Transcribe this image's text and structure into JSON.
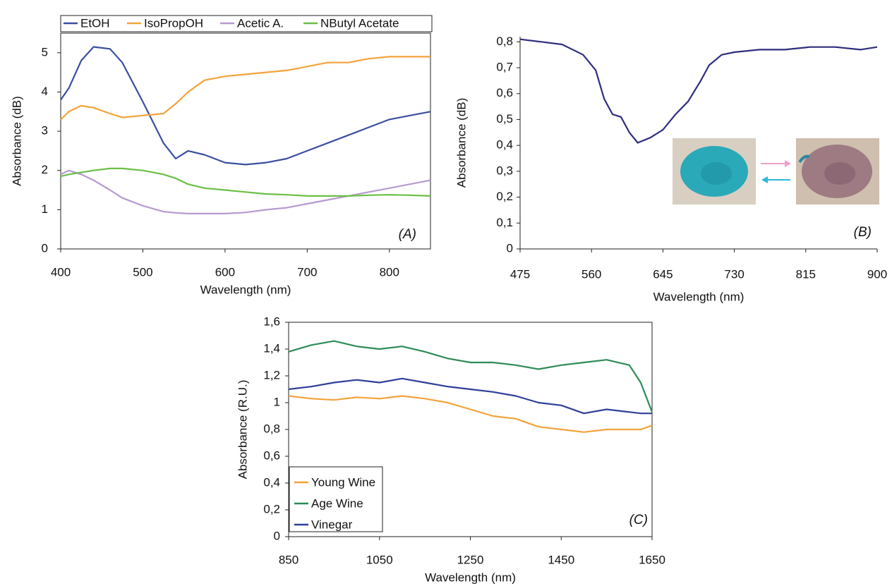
{
  "chart_data": [
    {
      "type": "line",
      "annotation": "(A)",
      "x_label": "Wavelength (nm)",
      "y_label": "Absorbance (dB)",
      "x": [
        400,
        410,
        425,
        440,
        460,
        475,
        500,
        525,
        540,
        555,
        575,
        600,
        625,
        650,
        675,
        700,
        725,
        750,
        775,
        800,
        825,
        850
      ],
      "series": [
        {
          "name": "EtOH",
          "color": "#3a4fa0",
          "values": [
            3.8,
            4.1,
            4.8,
            5.15,
            5.1,
            4.75,
            3.75,
            2.7,
            2.3,
            2.5,
            2.4,
            2.2,
            2.15,
            2.2,
            2.3,
            2.5,
            2.7,
            2.9,
            3.1,
            3.3,
            3.4,
            3.5
          ]
        },
        {
          "name": "IsoPropOH",
          "color": "#f4a23a",
          "values": [
            3.3,
            3.5,
            3.65,
            3.6,
            3.45,
            3.35,
            3.4,
            3.45,
            3.7,
            4.0,
            4.3,
            4.4,
            4.45,
            4.5,
            4.55,
            4.65,
            4.75,
            4.75,
            4.85,
            4.9,
            4.9,
            4.9
          ]
        },
        {
          "name": "Acetic A.",
          "color": "#b79ad0",
          "values": [
            1.9,
            2.0,
            1.9,
            1.75,
            1.5,
            1.3,
            1.1,
            0.95,
            0.92,
            0.9,
            0.9,
            0.9,
            0.93,
            1.0,
            1.05,
            1.15,
            1.25,
            1.35,
            1.45,
            1.55,
            1.65,
            1.75
          ]
        },
        {
          "name": "NButyl Acetate",
          "color": "#6abf45",
          "values": [
            1.85,
            1.9,
            1.95,
            2.0,
            2.05,
            2.05,
            2.0,
            1.9,
            1.8,
            1.65,
            1.55,
            1.5,
            1.45,
            1.4,
            1.38,
            1.35,
            1.35,
            1.35,
            1.37,
            1.38,
            1.37,
            1.35
          ]
        }
      ],
      "xlim": [
        400,
        850
      ],
      "xticks": [
        400,
        500,
        600,
        700,
        800
      ],
      "ylim": [
        0,
        5.5
      ],
      "yticks": [
        0,
        1,
        2,
        3,
        4,
        5
      ],
      "legend": "top"
    },
    {
      "type": "line",
      "annotation": "(B)",
      "x_label": "Wavelength (nm)",
      "y_label": "Absorbance (dB)",
      "x": [
        475,
        500,
        525,
        550,
        565,
        575,
        585,
        595,
        605,
        615,
        630,
        645,
        660,
        675,
        690,
        700,
        715,
        730,
        760,
        790,
        820,
        850,
        880,
        900
      ],
      "series": [
        {
          "color": "#2e2e7f",
          "values": [
            0.81,
            0.8,
            0.79,
            0.75,
            0.69,
            0.58,
            0.52,
            0.51,
            0.45,
            0.41,
            0.43,
            0.46,
            0.52,
            0.57,
            0.65,
            0.71,
            0.75,
            0.76,
            0.77,
            0.77,
            0.78,
            0.78,
            0.77,
            0.78
          ]
        }
      ],
      "xlim": [
        475,
        900
      ],
      "xticks": [
        475,
        560,
        645,
        730,
        815,
        900
      ],
      "ylim": [
        0,
        0.82
      ],
      "yticks": [
        0,
        {
          "value": 0.1,
          "label": "0,1"
        },
        {
          "value": 0.2,
          "label": "0,2"
        },
        {
          "value": 0.3,
          "label": "0,3"
        },
        {
          "value": 0.4,
          "label": "0,4"
        },
        {
          "value": 0.5,
          "label": "0,5"
        },
        {
          "value": 0.6,
          "label": "0,6"
        },
        {
          "value": 0.7,
          "label": "0,7"
        },
        {
          "value": 0.8,
          "label": "0,8"
        }
      ]
    },
    {
      "type": "line",
      "annotation": "(C)",
      "x_label": "Wavelength (nm)",
      "y_label": "Absorbance (R.U.)",
      "x": [
        850,
        900,
        950,
        1000,
        1050,
        1100,
        1150,
        1200,
        1250,
        1300,
        1350,
        1400,
        1450,
        1500,
        1550,
        1600,
        1625,
        1650
      ],
      "series": [
        {
          "name": "Young Wine",
          "color": "#f4a23a",
          "values": [
            1.05,
            1.03,
            1.02,
            1.04,
            1.03,
            1.05,
            1.03,
            1.0,
            0.95,
            0.9,
            0.88,
            0.82,
            0.8,
            0.78,
            0.8,
            0.8,
            0.8,
            0.83
          ]
        },
        {
          "name": "Age Wine",
          "color": "#2e8b57",
          "values": [
            1.38,
            1.43,
            1.46,
            1.42,
            1.4,
            1.42,
            1.38,
            1.33,
            1.3,
            1.3,
            1.28,
            1.25,
            1.28,
            1.3,
            1.32,
            1.28,
            1.15,
            0.93
          ]
        },
        {
          "name": "Vinegar",
          "color": "#2e3f9a",
          "values": [
            1.1,
            1.12,
            1.15,
            1.17,
            1.15,
            1.18,
            1.15,
            1.12,
            1.1,
            1.08,
            1.05,
            1.0,
            0.98,
            0.92,
            0.95,
            0.93,
            0.92,
            0.92
          ]
        }
      ],
      "xlim": [
        850,
        1650
      ],
      "xticks": [
        850,
        1050,
        1250,
        1450,
        1650
      ],
      "ylim": [
        0,
        1.6
      ],
      "yticks": [
        0,
        {
          "value": 0.2,
          "label": "0,2"
        },
        {
          "value": 0.4,
          "label": "0,4"
        },
        {
          "value": 0.6,
          "label": "0,6"
        },
        {
          "value": 0.8,
          "label": "0,8"
        },
        1,
        {
          "value": 1.2,
          "label": "1,2"
        },
        {
          "value": 1.4,
          "label": "1,4"
        },
        {
          "value": 1.6,
          "label": "1,6"
        }
      ],
      "legend": "bottom-left"
    }
  ]
}
